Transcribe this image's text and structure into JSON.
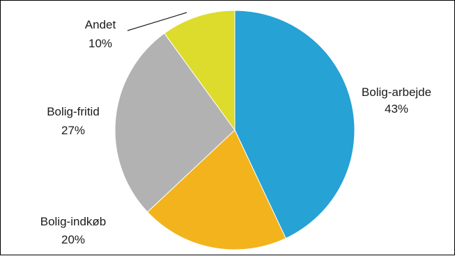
{
  "chart_data": {
    "type": "pie",
    "title": "",
    "categories": [
      "Bolig-arbejde",
      "Bolig-indkøb",
      "Bolig-fritid",
      "Andet"
    ],
    "values": [
      43,
      20,
      27,
      10
    ],
    "value_labels": [
      "43%",
      "20%",
      "27%",
      "10%"
    ],
    "colors": [
      "#26a2d4",
      "#f2b31d",
      "#b2b2b2",
      "#dddb2c"
    ],
    "start": "12 o'clock",
    "direction": "clockwise",
    "legend": "none"
  }
}
